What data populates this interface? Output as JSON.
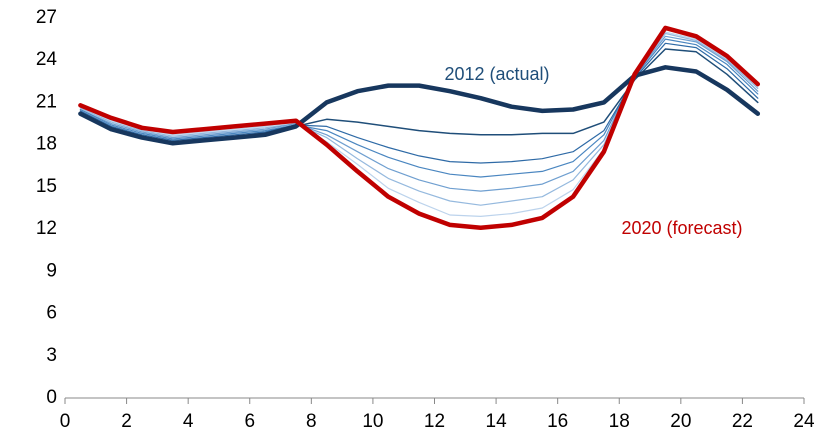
{
  "chart_data": {
    "type": "line",
    "x": [
      0.5,
      1.5,
      2.5,
      3.5,
      4.5,
      5.5,
      6.5,
      7.5,
      8.5,
      9.5,
      10.5,
      11.5,
      12.5,
      13.5,
      14.5,
      15.5,
      16.5,
      17.5,
      18.5,
      19.5,
      20.5,
      21.5,
      22.5
    ],
    "xlim": [
      0,
      24
    ],
    "xticks": [
      0,
      2,
      4,
      6,
      8,
      10,
      12,
      14,
      16,
      18,
      20,
      22,
      24
    ],
    "ylim": [
      0,
      27
    ],
    "yticks": [
      0,
      3,
      6,
      9,
      12,
      15,
      18,
      21,
      24,
      27
    ],
    "grid": false,
    "series": [
      {
        "name": "2012 (actual)",
        "color": "#17375e",
        "width": 4.5,
        "values": [
          20.2,
          19.1,
          18.5,
          18.1,
          18.3,
          18.5,
          18.7,
          19.3,
          21.0,
          21.8,
          22.2,
          22.2,
          21.8,
          21.3,
          20.7,
          20.4,
          20.5,
          21.0,
          22.9,
          23.5,
          23.2,
          21.9,
          20.2
        ]
      },
      {
        "color": "#1f4e79",
        "width": 1.5,
        "values": [
          20.3,
          19.2,
          18.6,
          18.2,
          18.4,
          18.6,
          18.8,
          19.3,
          19.8,
          19.6,
          19.3,
          19.0,
          18.8,
          18.7,
          18.7,
          18.8,
          18.8,
          19.6,
          22.6,
          24.8,
          24.6,
          23.0,
          21.0
        ]
      },
      {
        "color": "#2e6aa6",
        "width": 1.2,
        "values": [
          20.4,
          19.3,
          18.7,
          18.3,
          18.5,
          18.7,
          18.9,
          19.4,
          19.3,
          18.5,
          17.8,
          17.2,
          16.8,
          16.7,
          16.8,
          17.0,
          17.5,
          19.0,
          22.7,
          25.2,
          24.9,
          23.4,
          21.3
        ]
      },
      {
        "color": "#4a86c0",
        "width": 1.2,
        "values": [
          20.5,
          19.4,
          18.8,
          18.4,
          18.6,
          18.8,
          19.0,
          19.4,
          19.0,
          18.0,
          17.1,
          16.4,
          15.9,
          15.7,
          15.9,
          16.1,
          16.8,
          18.7,
          22.8,
          25.5,
          25.1,
          23.7,
          21.6
        ]
      },
      {
        "color": "#6f9fd0",
        "width": 1.2,
        "values": [
          20.5,
          19.5,
          18.9,
          18.5,
          18.7,
          18.9,
          19.1,
          19.5,
          18.7,
          17.5,
          16.3,
          15.5,
          14.9,
          14.7,
          14.9,
          15.2,
          16.1,
          18.3,
          22.9,
          25.7,
          25.3,
          23.9,
          21.8
        ]
      },
      {
        "color": "#95b9de",
        "width": 1.2,
        "values": [
          20.6,
          19.6,
          19.0,
          18.6,
          18.8,
          19.0,
          19.2,
          19.5,
          18.5,
          17.0,
          15.6,
          14.7,
          14.0,
          13.7,
          14.0,
          14.3,
          15.5,
          18.0,
          22.9,
          25.9,
          25.4,
          24.0,
          22.0
        ]
      },
      {
        "color": "#bcd3ec",
        "width": 1.2,
        "values": [
          20.7,
          19.7,
          19.1,
          18.7,
          18.9,
          19.1,
          19.3,
          19.6,
          18.2,
          16.6,
          14.9,
          13.9,
          13.0,
          12.9,
          13.1,
          13.5,
          14.8,
          17.7,
          23.0,
          26.0,
          25.5,
          24.1,
          22.1
        ]
      },
      {
        "name": "2020 (forecast)",
        "color": "#c00000",
        "width": 4.5,
        "values": [
          20.8,
          19.9,
          19.2,
          18.9,
          19.1,
          19.3,
          19.5,
          19.7,
          18.0,
          16.1,
          14.3,
          13.1,
          12.3,
          12.1,
          12.3,
          12.8,
          14.3,
          17.5,
          23.0,
          26.3,
          25.7,
          24.3,
          22.3
        ]
      }
    ]
  }
}
